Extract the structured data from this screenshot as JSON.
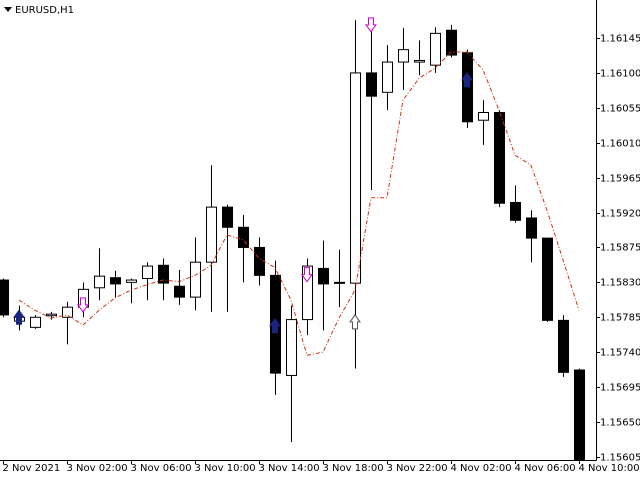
{
  "chart_data": {
    "type": "candlestick",
    "title": "EURUSD,H1",
    "categories": [
      "2 Nov 2021",
      null,
      null,
      null,
      "3 Nov 02:00",
      null,
      null,
      null,
      "3 Nov 06:00",
      null,
      null,
      null,
      "3 Nov 10:00",
      null,
      null,
      null,
      "3 Nov 14:00",
      null,
      null,
      null,
      "3 Nov 18:00",
      null,
      null,
      null,
      "3 Nov 22:00",
      null,
      null,
      null,
      "4 Nov 02:00",
      null,
      null,
      null,
      "4 Nov 06:00",
      null,
      null,
      null,
      "4 Nov 10:00"
    ],
    "open": [
      1.15833,
      1.1578,
      1.15772,
      1.15787,
      1.15785,
      1.15798,
      1.15823,
      1.15836,
      1.1583,
      1.15835,
      1.15852,
      1.15825,
      1.15811,
      1.15856,
      1.15927,
      1.15901,
      1.15875,
      1.15839,
      1.1571,
      1.15782,
      1.15848,
      1.1583,
      1.15829,
      1.161,
      1.16075,
      1.16114,
      1.16114,
      1.1611,
      1.16155,
      1.16126,
      1.16039,
      1.16049,
      1.15933,
      1.15913,
      1.15887,
      1.15781,
      1.15717
    ],
    "high": [
      1.15835,
      1.158,
      1.15788,
      1.15792,
      1.15805,
      1.1583,
      1.15874,
      1.15845,
      1.15835,
      1.15856,
      1.15861,
      1.15846,
      1.15888,
      1.15981,
      1.1593,
      1.15917,
      1.15888,
      1.15858,
      1.158,
      1.15861,
      1.15884,
      1.15872,
      1.16168,
      1.16162,
      1.16136,
      1.16158,
      1.16142,
      1.16159,
      1.16162,
      1.1613,
      1.16065,
      1.16052,
      1.15955,
      1.15923,
      1.15887,
      1.15788,
      1.15719
    ],
    "low": [
      1.15785,
      1.15768,
      1.1577,
      1.15782,
      1.1575,
      1.15785,
      1.15807,
      1.1581,
      1.15803,
      1.15807,
      1.15807,
      1.15801,
      1.15794,
      1.15792,
      1.15792,
      1.1583,
      1.15826,
      1.15685,
      1.15624,
      1.15762,
      1.15768,
      1.15798,
      1.15719,
      1.15949,
      1.16052,
      1.16078,
      1.16097,
      1.161,
      1.1612,
      1.16029,
      1.16007,
      1.15927,
      1.15907,
      1.15856,
      1.15779,
      1.15708,
      1.15601
    ],
    "close": [
      1.15788,
      1.15785,
      1.15785,
      1.15789,
      1.15798,
      1.15821,
      1.15838,
      1.15828,
      1.15833,
      1.15851,
      1.15829,
      1.15811,
      1.15856,
      1.15927,
      1.15901,
      1.15875,
      1.15839,
      1.15713,
      1.15782,
      1.15851,
      1.15828,
      1.15829,
      1.161,
      1.1607,
      1.16114,
      1.1613,
      1.16116,
      1.16151,
      1.16123,
      1.16037,
      1.16049,
      1.15932,
      1.1591,
      1.15887,
      1.15781,
      1.15714,
      1.15601
    ],
    "ma": {
      "color": "#cc3311",
      "values": [
        null,
        1.15807,
        1.15794,
        1.15784,
        1.15788,
        1.15775,
        1.15794,
        1.1581,
        1.1582,
        1.15827,
        1.15833,
        1.15831,
        1.15839,
        1.15852,
        1.15891,
        1.15885,
        1.15861,
        1.15849,
        1.15807,
        1.15736,
        1.1574,
        1.15784,
        1.1582,
        1.15939,
        1.15939,
        1.16065,
        1.16093,
        1.16106,
        1.16127,
        1.16127,
        1.16104,
        1.16052,
        1.15994,
        1.15981,
        1.15923,
        1.15859,
        1.15794
      ]
    },
    "arrows": [
      {
        "index": 1,
        "value": 1.15785,
        "direction": "up",
        "fill": "#1a237e",
        "stroke": "#1a237e"
      },
      {
        "index": 5,
        "value": 1.15801,
        "direction": "down",
        "fill": "#ffffff",
        "stroke": "#cc00cc"
      },
      {
        "index": 17,
        "value": 1.15774,
        "direction": "up",
        "fill": "#1a237e",
        "stroke": "#1a237e"
      },
      {
        "index": 19,
        "value": 1.1584,
        "direction": "down",
        "fill": "#ffffff",
        "stroke": "#cc00cc"
      },
      {
        "index": 22,
        "value": 1.15779,
        "direction": "up",
        "fill": "#ffffff",
        "stroke": "#555555"
      },
      {
        "index": 23,
        "value": 1.16162,
        "direction": "down",
        "fill": "#ffffff",
        "stroke": "#cc00cc"
      },
      {
        "index": 29,
        "value": 1.16091,
        "direction": "up",
        "fill": "#1a237e",
        "stroke": "#1a237e"
      }
    ],
    "up_color": "#ffffff",
    "down_color": "#000000",
    "ylim": [
      1.15601,
      1.16194
    ],
    "yticks": [
      1.16145,
      {
        "value": 1.161,
        "label": "1.16100"
      },
      1.16055,
      {
        "value": 1.1601,
        "label": "1.16010"
      },
      1.15965,
      {
        "value": 1.1592,
        "label": "1.15920"
      },
      1.15875,
      {
        "value": 1.1583,
        "label": "1.15830"
      },
      1.15785,
      {
        "value": 1.1574,
        "label": "1.15740"
      },
      1.15695,
      {
        "value": 1.1565,
        "label": "1.15650"
      },
      1.15605
    ]
  }
}
